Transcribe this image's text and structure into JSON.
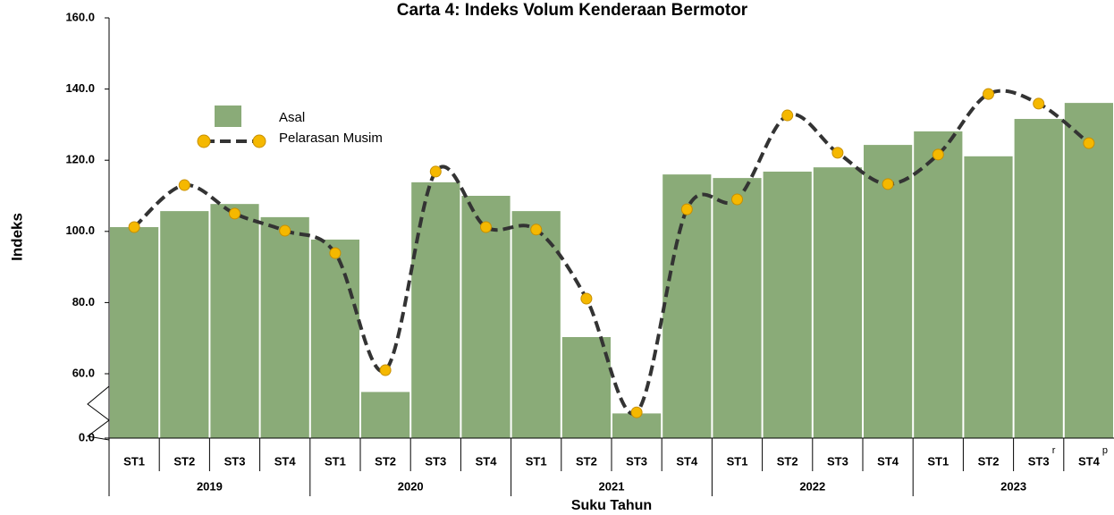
{
  "chart_data": {
    "type": "bar",
    "title": "Carta 4: Indeks Volum Kenderaan Bermotor",
    "y_label": "Indeks",
    "x_label": "Suku Tahun",
    "ylim": [
      0,
      160
    ],
    "y_break": [
      0,
      60
    ],
    "yticks": [
      {
        "value": 0,
        "label": "0.0"
      },
      {
        "value": 60,
        "label": "60.0"
      },
      {
        "value": 80,
        "label": "80.0"
      },
      {
        "value": 100,
        "label": "100.0"
      },
      {
        "value": 120,
        "label": "120.0"
      },
      {
        "value": 140,
        "label": "140.0"
      },
      {
        "value": 160,
        "label": "160.0"
      }
    ],
    "categories": [
      "ST1",
      "ST2",
      "ST3",
      "ST4",
      "ST1",
      "ST2",
      "ST3",
      "ST4",
      "ST1",
      "ST2",
      "ST3",
      "ST4",
      "ST1",
      "ST2",
      "ST3",
      "ST4",
      "ST1",
      "ST2",
      "ST3",
      "ST4"
    ],
    "category_superscripts": [
      null,
      null,
      null,
      null,
      null,
      null,
      null,
      null,
      null,
      null,
      null,
      null,
      null,
      null,
      null,
      null,
      null,
      null,
      "r",
      "p"
    ],
    "groups": [
      {
        "label": "2019",
        "span": 4
      },
      {
        "label": "2020",
        "span": 4
      },
      {
        "label": "2021",
        "span": 4
      },
      {
        "label": "2022",
        "span": 4
      },
      {
        "label": "2023",
        "span": 4
      }
    ],
    "series": [
      {
        "name": "Asal",
        "type": "bar",
        "color": "#8aab78",
        "values": [
          101.2,
          105.7,
          107.7,
          104.0,
          97.7,
          43,
          113.8,
          110.0,
          105.7,
          70.3,
          23,
          116.0,
          115.0,
          116.8,
          118.0,
          124.3,
          128.1,
          121.1,
          131.6,
          136.1
        ]
      },
      {
        "name": "Pelarasan Musim",
        "type": "line",
        "color": "#333333",
        "marker_color": "#f5b800",
        "values": [
          101.2,
          113.0,
          105.0,
          100.2,
          93.9,
          61.0,
          116.8,
          101.2,
          100.5,
          81.1,
          24,
          106.2,
          109.0,
          132.6,
          122.1,
          113.3,
          121.6,
          138.6,
          135.9,
          124.8
        ]
      }
    ]
  }
}
